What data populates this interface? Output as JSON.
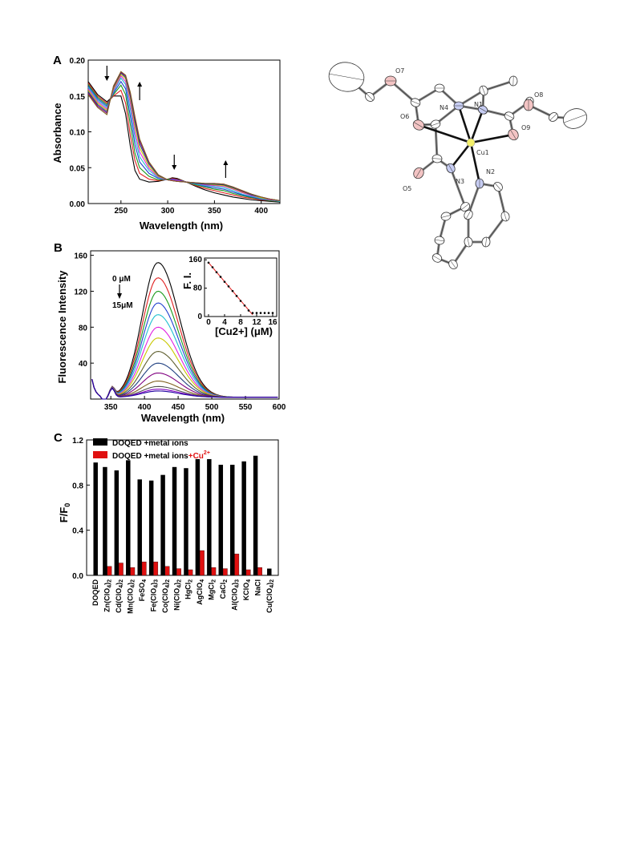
{
  "chart_data": [
    {
      "panel": "A",
      "type": "line",
      "xlabel": "Wavelength (nm)",
      "ylabel": "Absorbance",
      "xlim": [
        215,
        420
      ],
      "ylim": [
        0,
        0.2
      ],
      "xticks": [
        250,
        300,
        350,
        400
      ],
      "yticks": [
        0.0,
        0.05,
        0.1,
        0.15,
        0.2
      ],
      "ytick_labels": [
        "0.00",
        "0.05",
        "0.10",
        "0.15",
        "0.20"
      ],
      "x": [
        215,
        225,
        235,
        242,
        250,
        255,
        260,
        265,
        270,
        280,
        290,
        300,
        305,
        310,
        320,
        330,
        340,
        350,
        360,
        370,
        380,
        390,
        400,
        410,
        420
      ],
      "series": [
        {
          "color": "#000000",
          "values": [
            0.17,
            0.152,
            0.142,
            0.15,
            0.15,
            0.125,
            0.08,
            0.046,
            0.034,
            0.03,
            0.031,
            0.034,
            0.036,
            0.035,
            0.03,
            0.024,
            0.019,
            0.015,
            0.012,
            0.009,
            0.007,
            0.005,
            0.004,
            0.003,
            0.002
          ]
        },
        {
          "color": "#e02020",
          "values": [
            0.168,
            0.15,
            0.14,
            0.15,
            0.158,
            0.14,
            0.095,
            0.06,
            0.042,
            0.034,
            0.032,
            0.034,
            0.035,
            0.034,
            0.03,
            0.025,
            0.021,
            0.018,
            0.015,
            0.012,
            0.009,
            0.007,
            0.005,
            0.004,
            0.003
          ]
        },
        {
          "color": "#1a9a1a",
          "values": [
            0.166,
            0.148,
            0.138,
            0.152,
            0.165,
            0.152,
            0.11,
            0.07,
            0.05,
            0.038,
            0.033,
            0.034,
            0.034,
            0.033,
            0.03,
            0.026,
            0.023,
            0.02,
            0.018,
            0.014,
            0.011,
            0.008,
            0.006,
            0.004,
            0.003
          ]
        },
        {
          "color": "#2040d0",
          "values": [
            0.164,
            0.146,
            0.136,
            0.154,
            0.17,
            0.16,
            0.122,
            0.082,
            0.058,
            0.042,
            0.035,
            0.033,
            0.034,
            0.033,
            0.03,
            0.027,
            0.024,
            0.022,
            0.02,
            0.016,
            0.012,
            0.009,
            0.006,
            0.005,
            0.003
          ]
        },
        {
          "color": "#20c0d0",
          "values": [
            0.162,
            0.144,
            0.134,
            0.156,
            0.175,
            0.166,
            0.132,
            0.092,
            0.065,
            0.046,
            0.036,
            0.033,
            0.033,
            0.032,
            0.03,
            0.027,
            0.025,
            0.024,
            0.022,
            0.018,
            0.013,
            0.01,
            0.007,
            0.005,
            0.003
          ]
        },
        {
          "color": "#e020e0",
          "values": [
            0.16,
            0.142,
            0.132,
            0.158,
            0.178,
            0.17,
            0.14,
            0.1,
            0.072,
            0.049,
            0.037,
            0.033,
            0.033,
            0.032,
            0.03,
            0.028,
            0.026,
            0.025,
            0.024,
            0.02,
            0.015,
            0.011,
            0.008,
            0.005,
            0.004
          ]
        },
        {
          "color": "#c8c800",
          "values": [
            0.158,
            0.14,
            0.13,
            0.16,
            0.18,
            0.174,
            0.146,
            0.108,
            0.078,
            0.052,
            0.038,
            0.033,
            0.032,
            0.031,
            0.03,
            0.028,
            0.027,
            0.026,
            0.025,
            0.021,
            0.016,
            0.012,
            0.008,
            0.006,
            0.004
          ]
        },
        {
          "color": "#204080",
          "values": [
            0.156,
            0.138,
            0.128,
            0.162,
            0.182,
            0.176,
            0.15,
            0.114,
            0.083,
            0.055,
            0.039,
            0.033,
            0.032,
            0.031,
            0.03,
            0.028,
            0.027,
            0.027,
            0.026,
            0.022,
            0.017,
            0.012,
            0.009,
            0.006,
            0.004
          ]
        },
        {
          "color": "#800080",
          "values": [
            0.154,
            0.136,
            0.126,
            0.163,
            0.183,
            0.178,
            0.153,
            0.118,
            0.087,
            0.057,
            0.04,
            0.033,
            0.032,
            0.031,
            0.03,
            0.029,
            0.028,
            0.028,
            0.027,
            0.023,
            0.017,
            0.013,
            0.009,
            0.006,
            0.004
          ]
        },
        {
          "color": "#806020",
          "values": [
            0.152,
            0.134,
            0.124,
            0.164,
            0.184,
            0.179,
            0.155,
            0.121,
            0.09,
            0.058,
            0.04,
            0.033,
            0.032,
            0.031,
            0.03,
            0.029,
            0.028,
            0.028,
            0.027,
            0.023,
            0.018,
            0.013,
            0.009,
            0.006,
            0.004
          ]
        }
      ],
      "arrows": [
        {
          "x": 235,
          "direction": "down"
        },
        {
          "x": 270,
          "direction": "up"
        },
        {
          "x": 307,
          "direction": "down"
        },
        {
          "x": 362,
          "direction": "up"
        }
      ]
    },
    {
      "panel": "B",
      "type": "line",
      "xlabel": "Wavelength (nm)",
      "ylabel": "Fluorescence Intensity",
      "xlim": [
        320,
        600
      ],
      "ylim": [
        0,
        165
      ],
      "xticks": [
        350,
        400,
        450,
        500,
        550,
        600
      ],
      "yticks": [
        40,
        80,
        120,
        160
      ],
      "peak_x": 420,
      "peak_values": [
        152,
        135,
        120,
        107,
        94,
        80,
        68,
        53,
        40,
        29,
        20,
        14,
        11,
        9
      ],
      "series_colors": [
        "#000000",
        "#e02020",
        "#1a9a1a",
        "#2040d0",
        "#20c0d0",
        "#e020e0",
        "#c8c800",
        "#606030",
        "#204080",
        "#800080",
        "#806020",
        "#505050",
        "#8000c0",
        "#2000a0"
      ],
      "annotation_top": "0 μM",
      "annotation_bottom": "15μM",
      "inset": {
        "type": "scatter",
        "xlabel": "[Cu2+]  (μM)",
        "ylabel": "F. I.",
        "xlim": [
          -1,
          17
        ],
        "ylim": [
          0,
          165
        ],
        "xticks": [
          0,
          4,
          8,
          12,
          16
        ],
        "yticks": [
          0,
          80,
          160
        ],
        "x": [
          0,
          1,
          2,
          3,
          4,
          5,
          6,
          7,
          8,
          9,
          10,
          11,
          12,
          13,
          14,
          15,
          16
        ],
        "y": [
          152,
          139,
          125,
          112,
          98,
          85,
          72,
          58,
          44,
          31,
          17,
          10,
          10,
          10,
          10,
          10,
          10
        ],
        "fit_line": [
          [
            0,
            152
          ],
          [
            11,
            5
          ]
        ]
      }
    },
    {
      "panel": "C",
      "type": "bar",
      "ylabel": "F/F0",
      "ylim": [
        0,
        1.2
      ],
      "yticks": [
        0.0,
        0.4,
        0.8,
        1.2
      ],
      "ytick_labels": [
        "0.0",
        "0.4",
        "0.8",
        "1.2"
      ],
      "categories": [
        "DOQED",
        "Zn(ClO4)2",
        "Cd(ClO4)2",
        "Mn(ClO4)2",
        "FeSO4",
        "Fe(ClO4)3",
        "Co(ClO4)2",
        "Ni(ClO4)2",
        "HgCl2",
        "AgClO4",
        "MgCl2",
        "CaCl2",
        "Al(ClO4)3",
        "KClO4",
        "NaCl",
        "Cu(ClO4)2"
      ],
      "category_labels": [
        {
          "base": "DOQED"
        },
        {
          "base": "Zn(ClO",
          "sub1": "4",
          "mid": ")",
          "sub2": "2"
        },
        {
          "base": "Cd(ClO",
          "sub1": "4",
          "mid": ")",
          "sub2": "2"
        },
        {
          "base": "Mn(ClO",
          "sub1": "4",
          "mid": ")",
          "sub2": "2"
        },
        {
          "base": "FeSO",
          "sub1": "4"
        },
        {
          "base": "Fe(ClO",
          "sub1": "4",
          "mid": ")",
          "sub2": "3"
        },
        {
          "base": "Co(ClO",
          "sub1": "4",
          "mid": ")",
          "sub2": "2"
        },
        {
          "base": "Ni(ClO",
          "sub1": "4",
          "mid": ")",
          "sub2": "2"
        },
        {
          "base": "HgCl",
          "sub1": "2"
        },
        {
          "base": "AgClO",
          "sub1": "4"
        },
        {
          "base": "MgCl",
          "sub1": "2"
        },
        {
          "base": "CaCl",
          "sub1": "2"
        },
        {
          "base": "Al(ClO",
          "sub1": "4",
          "mid": ")",
          "sub2": "3"
        },
        {
          "base": "KClO",
          "sub1": "4"
        },
        {
          "base": "NaCl"
        },
        {
          "base": "Cu(ClO",
          "sub1": "4",
          "mid": ")",
          "sub2": "2"
        }
      ],
      "series": [
        {
          "name": "DOQED +metal ions",
          "color": "#000000",
          "values": [
            1.0,
            0.96,
            0.93,
            1.02,
            0.85,
            0.84,
            0.89,
            0.96,
            0.95,
            1.03,
            1.03,
            0.98,
            0.98,
            1.01,
            1.06,
            0.06
          ]
        },
        {
          "name": "DOQED +metal ions",
          "name_suffix": "+Cu",
          "name_suffix_sup": "2+",
          "color": "#e01010",
          "values": [
            null,
            0.08,
            0.11,
            0.07,
            0.12,
            0.12,
            0.08,
            0.06,
            0.05,
            0.22,
            0.07,
            0.06,
            0.19,
            0.05,
            0.07,
            null
          ]
        }
      ]
    }
  ],
  "panel_labels": {
    "a": "A",
    "b": "B",
    "c": "C"
  },
  "crystal_structure": {
    "atom_labels": [
      "O7",
      "O8",
      "N4",
      "N1",
      "O6",
      "O9",
      "Cu1",
      "N3",
      "N2",
      "O5"
    ]
  }
}
